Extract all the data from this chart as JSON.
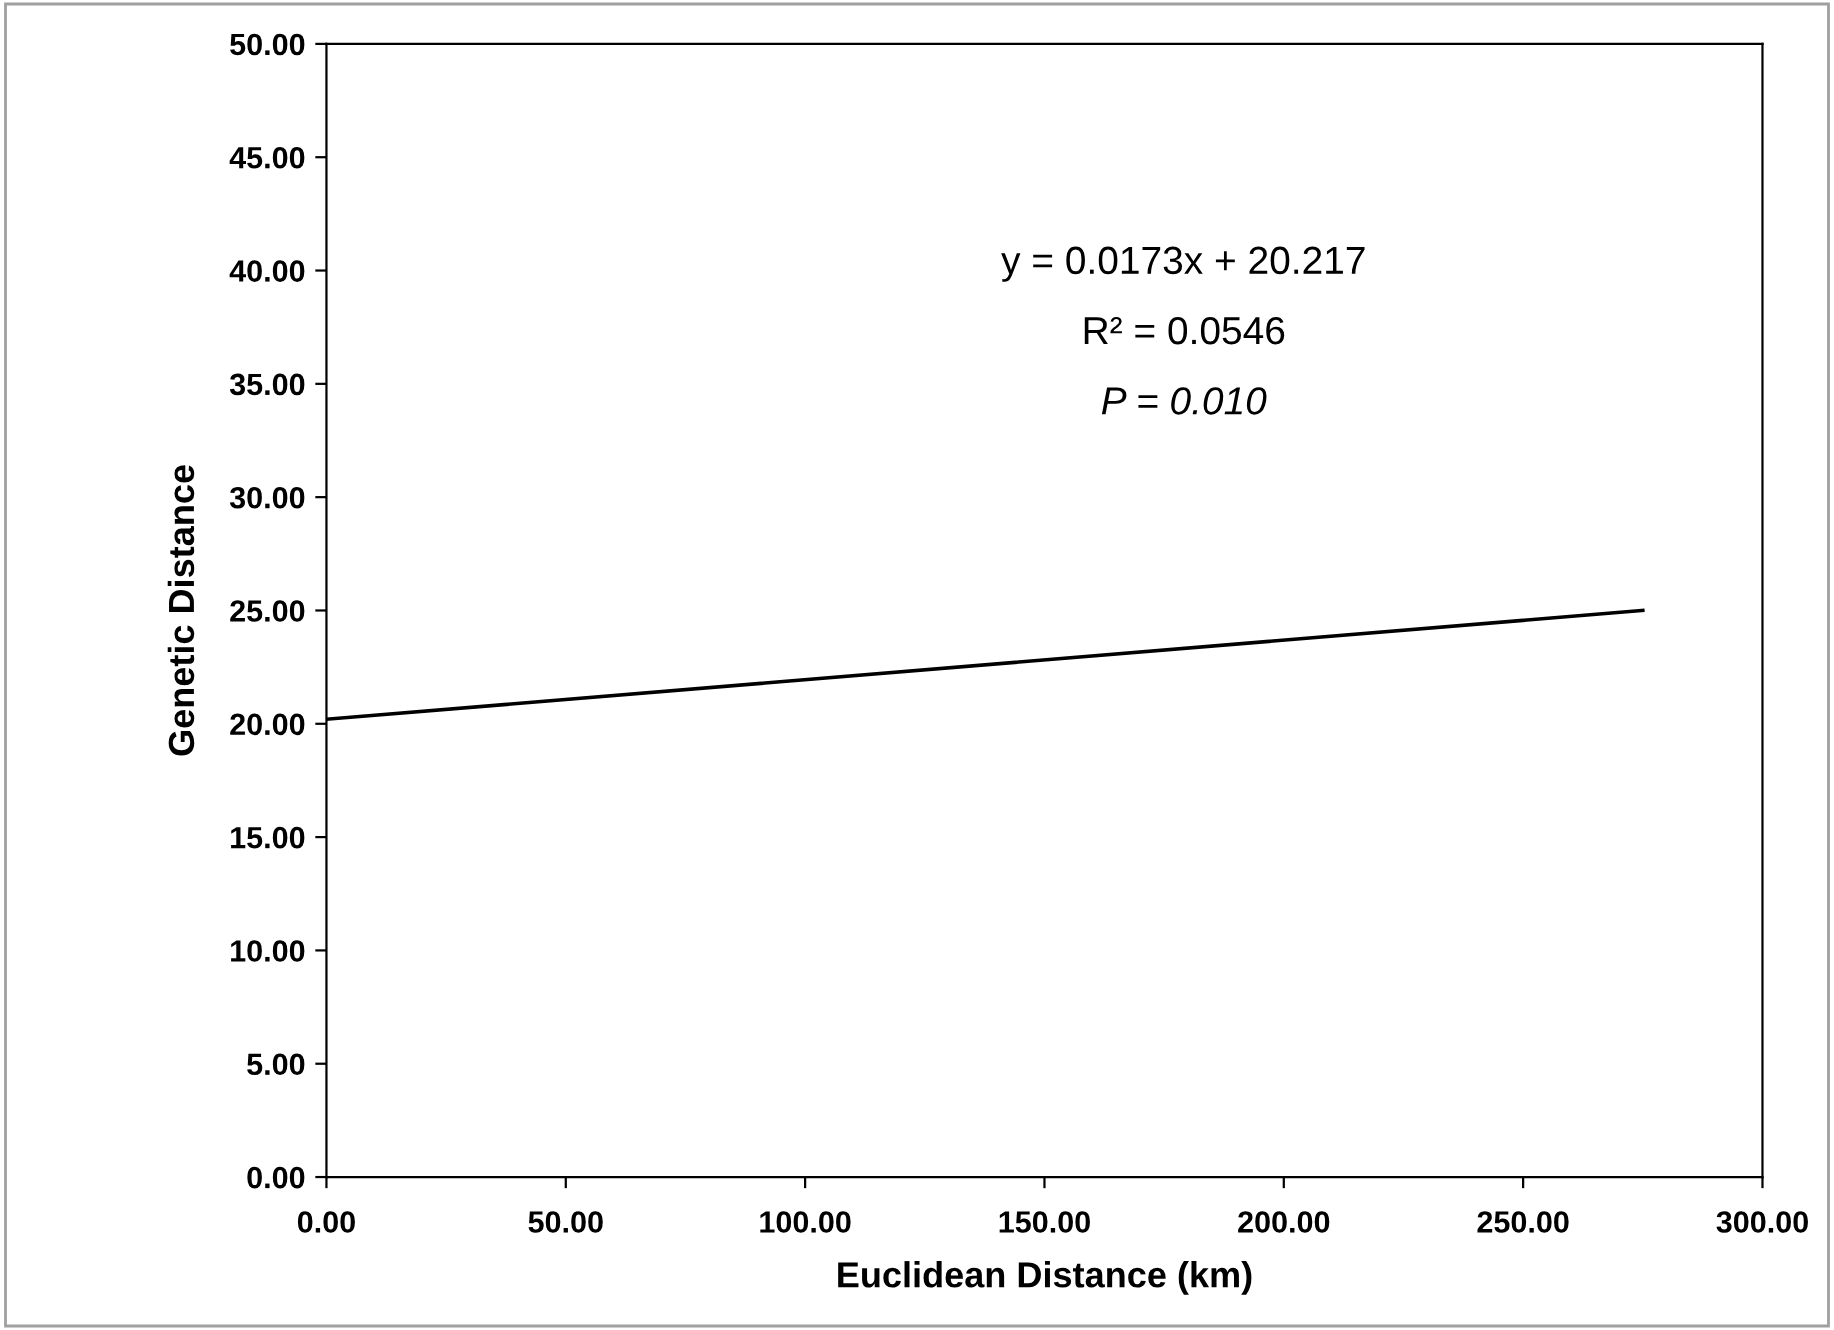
{
  "chart_data": {
    "type": "line",
    "xlabel": "Euclidean Distance (km)",
    "ylabel": "Genetic Distance",
    "x": [
      0,
      275
    ],
    "series": [
      {
        "color": "#000000",
        "values": [
          20.2,
          25.0
        ]
      }
    ],
    "xlim": [
      0,
      300
    ],
    "ylim": [
      0,
      50
    ],
    "xticks": [
      {
        "value": 0,
        "label": "0.00"
      },
      {
        "value": 50,
        "label": "50.00"
      },
      {
        "value": 100,
        "label": "100.00"
      },
      {
        "value": 150,
        "label": "150.00"
      },
      {
        "value": 200,
        "label": "200.00"
      },
      {
        "value": 250,
        "label": "250.00"
      },
      {
        "value": 300,
        "label": "300.00"
      }
    ],
    "yticks": [
      {
        "value": 0,
        "label": "0.00"
      },
      {
        "value": 5,
        "label": "5.00"
      },
      {
        "value": 10,
        "label": "10.00"
      },
      {
        "value": 15,
        "label": "15.00"
      },
      {
        "value": 20,
        "label": "20.00"
      },
      {
        "value": 25,
        "label": "25.00"
      },
      {
        "value": 30,
        "label": "30.00"
      },
      {
        "value": 35,
        "label": "35.00"
      },
      {
        "value": 40,
        "label": "40.00"
      },
      {
        "value": 45,
        "label": "45.00"
      },
      {
        "value": 50,
        "label": "50.00"
      }
    ],
    "annotations": [
      "y = 0.0173x + 20.217",
      "R² = 0.0546",
      "P = 0.010"
    ],
    "grid": false,
    "legend": false,
    "marker": "none",
    "line_style": "solid"
  }
}
